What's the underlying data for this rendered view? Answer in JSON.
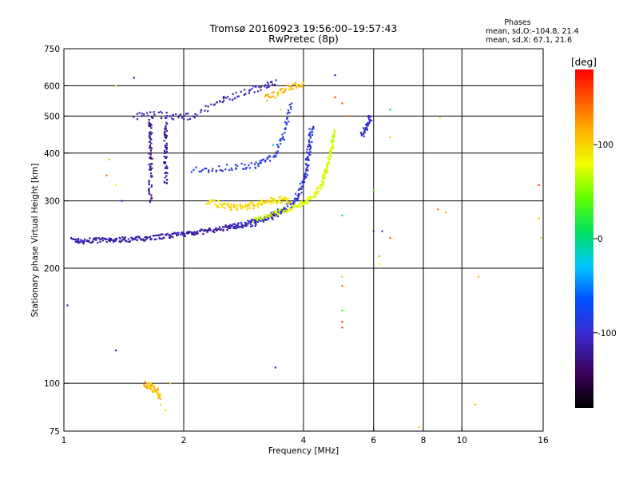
{
  "header": {
    "title_line1": "Tromsø 20160923 19:56:00–19:57:43",
    "title_line2": "RwPretec (8p)",
    "stats_title": "Phases",
    "stats_o": "mean, sd,O:–104.8, 21.4",
    "stats_x": "mean, sd,X:  67.1, 21.6"
  },
  "chart_data": {
    "type": "scatter",
    "xlabel": "Frequency [MHz]",
    "ylabel": "Stationary phase Virtual Height [km]",
    "xscale": "log",
    "yscale": "log",
    "xlim": [
      1,
      16
    ],
    "ylim": [
      75,
      750
    ],
    "x_ticks": [
      1,
      2,
      4,
      6,
      8,
      10,
      16
    ],
    "x_tick_labels": [
      "1",
      "2",
      "4",
      "6",
      "8",
      "10",
      "16"
    ],
    "y_ticks": [
      75,
      100,
      200,
      300,
      400,
      500,
      600,
      750
    ],
    "y_tick_labels": [
      "75",
      "100",
      "200",
      "300",
      "400",
      "500",
      "600",
      "750"
    ],
    "grid": true,
    "colorbar": {
      "label": "[deg]",
      "range": [
        -180,
        180
      ],
      "tick_values": [
        100,
        0,
        -100
      ],
      "tick_labels": [
        "100",
        "0",
        "-100"
      ],
      "colormap": "rainbow",
      "low_color": "#000000",
      "high_color": "#ff0000"
    },
    "tracks": [
      {
        "desc": "low O trace",
        "phase": -115,
        "spread": 0.015,
        "n": 3,
        "points": [
          [
            1.05,
            237
          ],
          [
            1.12,
            235
          ],
          [
            1.2,
            237
          ],
          [
            1.3,
            236
          ],
          [
            1.4,
            238
          ],
          [
            1.5,
            238
          ],
          [
            1.6,
            240
          ],
          [
            1.75,
            242
          ],
          [
            1.9,
            244
          ],
          [
            2.05,
            247
          ],
          [
            2.2,
            249
          ],
          [
            2.4,
            252
          ],
          [
            2.6,
            256
          ],
          [
            2.8,
            260
          ],
          [
            3.0,
            265
          ],
          [
            3.2,
            271
          ],
          [
            3.4,
            278
          ],
          [
            3.6,
            286
          ]
        ]
      },
      {
        "desc": "O trace rising",
        "phase": -95,
        "spread": 0.02,
        "n": 3,
        "points": [
          [
            2.6,
            255
          ],
          [
            3.0,
            263
          ],
          [
            3.3,
            272
          ],
          [
            3.6,
            285
          ],
          [
            3.8,
            300
          ],
          [
            3.95,
            325
          ],
          [
            4.05,
            355
          ],
          [
            4.1,
            390
          ],
          [
            4.15,
            430
          ],
          [
            4.2,
            470
          ]
        ]
      },
      {
        "desc": "X trace",
        "phase": 75,
        "spread": 0.015,
        "n": 3,
        "points": [
          [
            3.0,
            268
          ],
          [
            3.3,
            276
          ],
          [
            3.6,
            284
          ],
          [
            3.9,
            292
          ],
          [
            4.1,
            300
          ],
          [
            4.3,
            315
          ],
          [
            4.45,
            335
          ],
          [
            4.55,
            360
          ],
          [
            4.65,
            390
          ],
          [
            4.72,
            420
          ],
          [
            4.78,
            460
          ]
        ]
      },
      {
        "desc": "F region second hop",
        "phase": -90,
        "spread": 0.02,
        "n": 2,
        "points": [
          [
            2.1,
            360
          ],
          [
            2.4,
            365
          ],
          [
            2.7,
            368
          ],
          [
            3.0,
            372
          ],
          [
            3.2,
            380
          ],
          [
            3.4,
            400
          ],
          [
            3.55,
            440
          ],
          [
            3.65,
            490
          ],
          [
            3.7,
            540
          ]
        ]
      },
      {
        "desc": "mid echo cluster",
        "phase": 95,
        "spread": 0.02,
        "n": 3,
        "points": [
          [
            2.3,
            300
          ],
          [
            2.5,
            292
          ],
          [
            2.7,
            288
          ],
          [
            2.9,
            290
          ],
          [
            3.1,
            295
          ],
          [
            3.3,
            300
          ],
          [
            3.5,
            302
          ],
          [
            3.7,
            300
          ]
        ]
      },
      {
        "desc": "upper track",
        "phase": -110,
        "spread": 0.02,
        "n": 2,
        "points": [
          [
            1.5,
            500
          ],
          [
            1.7,
            505
          ],
          [
            1.9,
            500
          ],
          [
            2.1,
            498
          ],
          [
            2.4,
            540
          ],
          [
            2.6,
            560
          ],
          [
            2.9,
            580
          ],
          [
            3.2,
            600
          ],
          [
            3.4,
            615
          ]
        ]
      },
      {
        "desc": "high yellow",
        "phase": 110,
        "spread": 0.02,
        "n": 2,
        "points": [
          [
            3.2,
            555
          ],
          [
            3.4,
            570
          ],
          [
            3.6,
            590
          ],
          [
            3.8,
            600
          ],
          [
            4.0,
            605
          ]
        ]
      },
      {
        "desc": "vertical column 1",
        "phase": -125,
        "spread": 0.02,
        "n": 3,
        "points": [
          [
            1.65,
            300
          ],
          [
            1.65,
            350
          ],
          [
            1.65,
            400
          ],
          [
            1.65,
            450
          ],
          [
            1.65,
            500
          ]
        ]
      },
      {
        "desc": "vertical column 2",
        "phase": -120,
        "spread": 0.02,
        "n": 3,
        "points": [
          [
            1.8,
            330
          ],
          [
            1.8,
            380
          ],
          [
            1.8,
            430
          ],
          [
            1.8,
            480
          ]
        ]
      },
      {
        "desc": "6 MHz traces",
        "phase": -100,
        "spread": 0.02,
        "n": 2,
        "points": [
          [
            5.6,
            440
          ],
          [
            5.7,
            460
          ],
          [
            5.8,
            480
          ],
          [
            5.9,
            500
          ]
        ]
      },
      {
        "desc": "E layer",
        "phase": 110,
        "spread": 0.02,
        "n": 3,
        "points": [
          [
            1.6,
            100
          ],
          [
            1.65,
            98
          ],
          [
            1.7,
            96
          ],
          [
            1.75,
            92
          ]
        ]
      }
    ],
    "scattered_points": [
      {
        "x": 1.35,
        "y": 600,
        "phase": 95
      },
      {
        "x": 1.5,
        "y": 630,
        "phase": -120
      },
      {
        "x": 1.3,
        "y": 385,
        "phase": 110
      },
      {
        "x": 1.28,
        "y": 350,
        "phase": 140
      },
      {
        "x": 1.35,
        "y": 330,
        "phase": 80
      },
      {
        "x": 1.4,
        "y": 300,
        "phase": -80
      },
      {
        "x": 1.25,
        "y": 240,
        "phase": -100
      },
      {
        "x": 1.02,
        "y": 160,
        "phase": -110
      },
      {
        "x": 1.35,
        "y": 122,
        "phase": -110
      },
      {
        "x": 3.4,
        "y": 110,
        "phase": -110
      },
      {
        "x": 5.0,
        "y": 190,
        "phase": 60
      },
      {
        "x": 5.0,
        "y": 180,
        "phase": 140
      },
      {
        "x": 5.0,
        "y": 155,
        "phase": 30
      },
      {
        "x": 5.0,
        "y": 145,
        "phase": 150
      },
      {
        "x": 5.0,
        "y": 140,
        "phase": 160
      },
      {
        "x": 5.0,
        "y": 275,
        "phase": 15
      },
      {
        "x": 6.2,
        "y": 215,
        "phase": 120
      },
      {
        "x": 6.2,
        "y": 205,
        "phase": 80
      },
      {
        "x": 6.0,
        "y": 320,
        "phase": 40
      },
      {
        "x": 6.3,
        "y": 250,
        "phase": -100
      },
      {
        "x": 6.0,
        "y": 250,
        "phase": -110
      },
      {
        "x": 6.6,
        "y": 240,
        "phase": 150
      },
      {
        "x": 6.6,
        "y": 520,
        "phase": 10
      },
      {
        "x": 6.6,
        "y": 440,
        "phase": 110
      },
      {
        "x": 4.8,
        "y": 640,
        "phase": -110
      },
      {
        "x": 4.8,
        "y": 560,
        "phase": 160
      },
      {
        "x": 5.0,
        "y": 540,
        "phase": 150
      },
      {
        "x": 5.2,
        "y": 500,
        "phase": 140
      },
      {
        "x": 8.7,
        "y": 285,
        "phase": 140
      },
      {
        "x": 9.1,
        "y": 280,
        "phase": 120
      },
      {
        "x": 8.8,
        "y": 495,
        "phase": 95
      },
      {
        "x": 11.0,
        "y": 190,
        "phase": 110
      },
      {
        "x": 10.8,
        "y": 88,
        "phase": 110
      },
      {
        "x": 7.8,
        "y": 77,
        "phase": 110
      },
      {
        "x": 15.6,
        "y": 330,
        "phase": 160
      },
      {
        "x": 15.6,
        "y": 270,
        "phase": 110
      },
      {
        "x": 15.8,
        "y": 240,
        "phase": 60
      },
      {
        "x": 1.85,
        "y": 100,
        "phase": 110
      },
      {
        "x": 1.8,
        "y": 85,
        "phase": 90
      },
      {
        "x": 1.75,
        "y": 88,
        "phase": 100
      },
      {
        "x": 3.35,
        "y": 420,
        "phase": -20
      },
      {
        "x": 3.5,
        "y": 520,
        "phase": 95
      }
    ]
  }
}
